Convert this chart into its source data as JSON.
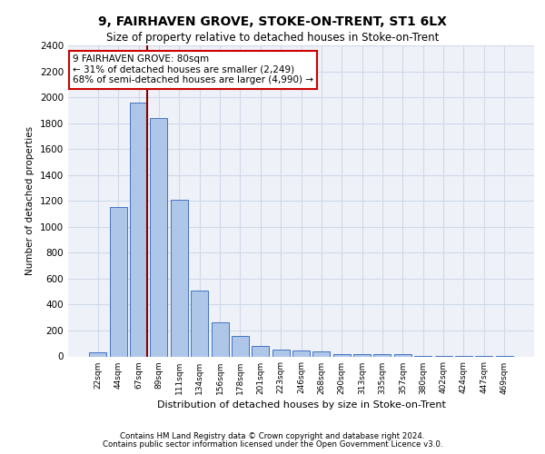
{
  "title1": "9, FAIRHAVEN GROVE, STOKE-ON-TRENT, ST1 6LX",
  "title2": "Size of property relative to detached houses in Stoke-on-Trent",
  "xlabel": "Distribution of detached houses by size in Stoke-on-Trent",
  "ylabel": "Number of detached properties",
  "categories": [
    "22sqm",
    "44sqm",
    "67sqm",
    "89sqm",
    "111sqm",
    "134sqm",
    "156sqm",
    "178sqm",
    "201sqm",
    "223sqm",
    "246sqm",
    "268sqm",
    "290sqm",
    "313sqm",
    "335sqm",
    "357sqm",
    "380sqm",
    "402sqm",
    "424sqm",
    "447sqm",
    "469sqm"
  ],
  "values": [
    30,
    1150,
    1960,
    1840,
    1210,
    510,
    265,
    155,
    80,
    50,
    45,
    40,
    20,
    18,
    15,
    20,
    5,
    5,
    5,
    5,
    5
  ],
  "bar_color": "#aec6e8",
  "bar_edge_color": "#4472c4",
  "vline_color": "#8b0000",
  "annotation_text": "9 FAIRHAVEN GROVE: 80sqm\n← 31% of detached houses are smaller (2,249)\n68% of semi-detached houses are larger (4,990) →",
  "annotation_box_color": "#ffffff",
  "annotation_box_edge_color": "#cc0000",
  "ylim": [
    0,
    2400
  ],
  "yticks": [
    0,
    200,
    400,
    600,
    800,
    1000,
    1200,
    1400,
    1600,
    1800,
    2000,
    2200,
    2400
  ],
  "grid_color": "#d0d8e8",
  "background_color": "#eef2f8",
  "footer1": "Contains HM Land Registry data © Crown copyright and database right 2024.",
  "footer2": "Contains public sector information licensed under the Open Government Licence v3.0."
}
